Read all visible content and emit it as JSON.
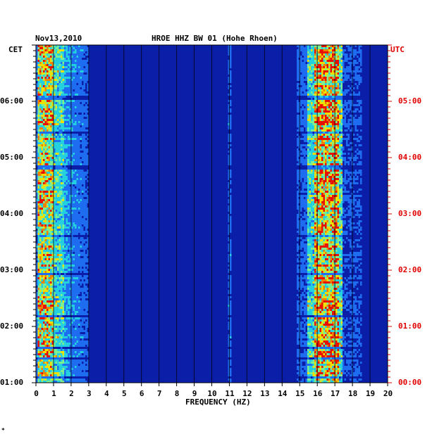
{
  "header": {
    "date": "Nov13,2010",
    "station": "HROE HHZ BW 01 (Hohe Rhoen)"
  },
  "chart_data": {
    "type": "heatmap",
    "title": "HROE HHZ BW 01 (Hohe Rhoen)",
    "date": "Nov13,2010",
    "xlabel": "FREQUENCY (HZ)",
    "xlim": [
      0,
      20
    ],
    "x_ticks": [
      "0",
      "1",
      "2",
      "3",
      "4",
      "5",
      "6",
      "7",
      "8",
      "9",
      "10",
      "11",
      "12",
      "13",
      "14",
      "15",
      "16",
      "17",
      "18",
      "19",
      "20"
    ],
    "left_axis": {
      "label": "CET",
      "ticks": [
        "06:00",
        "05:00",
        "04:00",
        "03:00",
        "02:00",
        "01:00"
      ]
    },
    "right_axis": {
      "label": "UTC",
      "ticks": [
        "05:00",
        "04:00",
        "03:00",
        "02:00",
        "01:00",
        "00:00"
      ]
    },
    "energy_bands_hz": [
      {
        "range": [
          0.1,
          1.0
        ],
        "level": "high"
      },
      {
        "range": [
          1.0,
          3.0
        ],
        "level": "medium"
      },
      {
        "range": [
          10.9,
          11.1
        ],
        "level": "low"
      },
      {
        "range": [
          15.4,
          17.3
        ],
        "level": "very high"
      }
    ],
    "colors": {
      "background": "#0a1ea8",
      "low": "#1e6cf0",
      "medium": "#24d0e0",
      "high": "#f0e000",
      "peak": "#e81000"
    }
  },
  "footer": {
    "mark": "*"
  }
}
